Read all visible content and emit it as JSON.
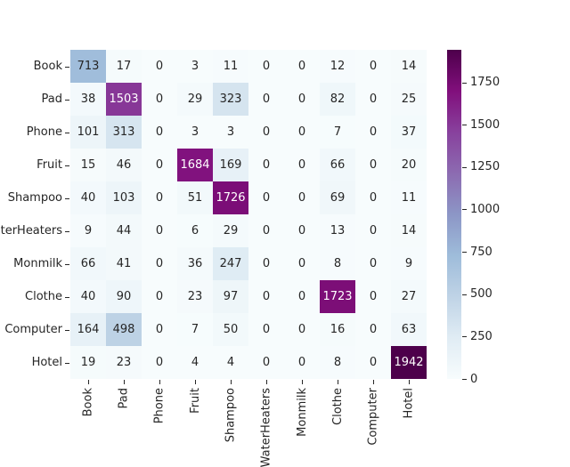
{
  "chart_data": {
    "type": "heatmap",
    "title": "",
    "row_labels": [
      "Book",
      "Pad",
      "Phone",
      "Fruit",
      "Shampoo",
      "WaterHeaters",
      "Monmilk",
      "Clothe",
      "Computer",
      "Hotel"
    ],
    "col_labels": [
      "Book",
      "Pad",
      "Phone",
      "Fruit",
      "Shampoo",
      "WaterHeaters",
      "Monmilk",
      "Clothe",
      "Computer",
      "Hotel"
    ],
    "values": [
      [
        713,
        17,
        0,
        3,
        11,
        0,
        0,
        12,
        0,
        14
      ],
      [
        38,
        1503,
        0,
        29,
        323,
        0,
        0,
        82,
        0,
        25
      ],
      [
        101,
        313,
        0,
        3,
        3,
        0,
        0,
        7,
        0,
        37
      ],
      [
        15,
        46,
        0,
        1684,
        169,
        0,
        0,
        66,
        0,
        20
      ],
      [
        40,
        103,
        0,
        51,
        1726,
        0,
        0,
        69,
        0,
        11
      ],
      [
        9,
        44,
        0,
        6,
        29,
        0,
        0,
        13,
        0,
        14
      ],
      [
        66,
        41,
        0,
        36,
        247,
        0,
        0,
        8,
        0,
        9
      ],
      [
        40,
        90,
        0,
        23,
        97,
        0,
        0,
        1723,
        0,
        27
      ],
      [
        164,
        498,
        0,
        7,
        50,
        0,
        0,
        16,
        0,
        63
      ],
      [
        19,
        23,
        0,
        4,
        4,
        0,
        0,
        8,
        0,
        1942
      ]
    ],
    "vmin": 0,
    "vmax": 1942,
    "annotated": true,
    "grid": false,
    "legend_position": "colorbar-right",
    "colorbar_ticks": [
      0,
      250,
      500,
      750,
      1000,
      1250,
      1500,
      1750
    ],
    "colormap_name": "BuPu",
    "colormap_stops": [
      {
        "pos": 0.0,
        "color": "#f7fcfd"
      },
      {
        "pos": 0.125,
        "color": "#e0ecf4"
      },
      {
        "pos": 0.25,
        "color": "#bfd3e6"
      },
      {
        "pos": 0.375,
        "color": "#9ebcda"
      },
      {
        "pos": 0.5,
        "color": "#8c96c6"
      },
      {
        "pos": 0.625,
        "color": "#8c6bb1"
      },
      {
        "pos": 0.75,
        "color": "#88419d"
      },
      {
        "pos": 0.875,
        "color": "#810f7c"
      },
      {
        "pos": 1.0,
        "color": "#4d004b"
      }
    ]
  },
  "colors": {
    "background": "#ffffff",
    "annotation_dark": "#262626",
    "annotation_light": "#ffffff",
    "tick": "#262626"
  }
}
